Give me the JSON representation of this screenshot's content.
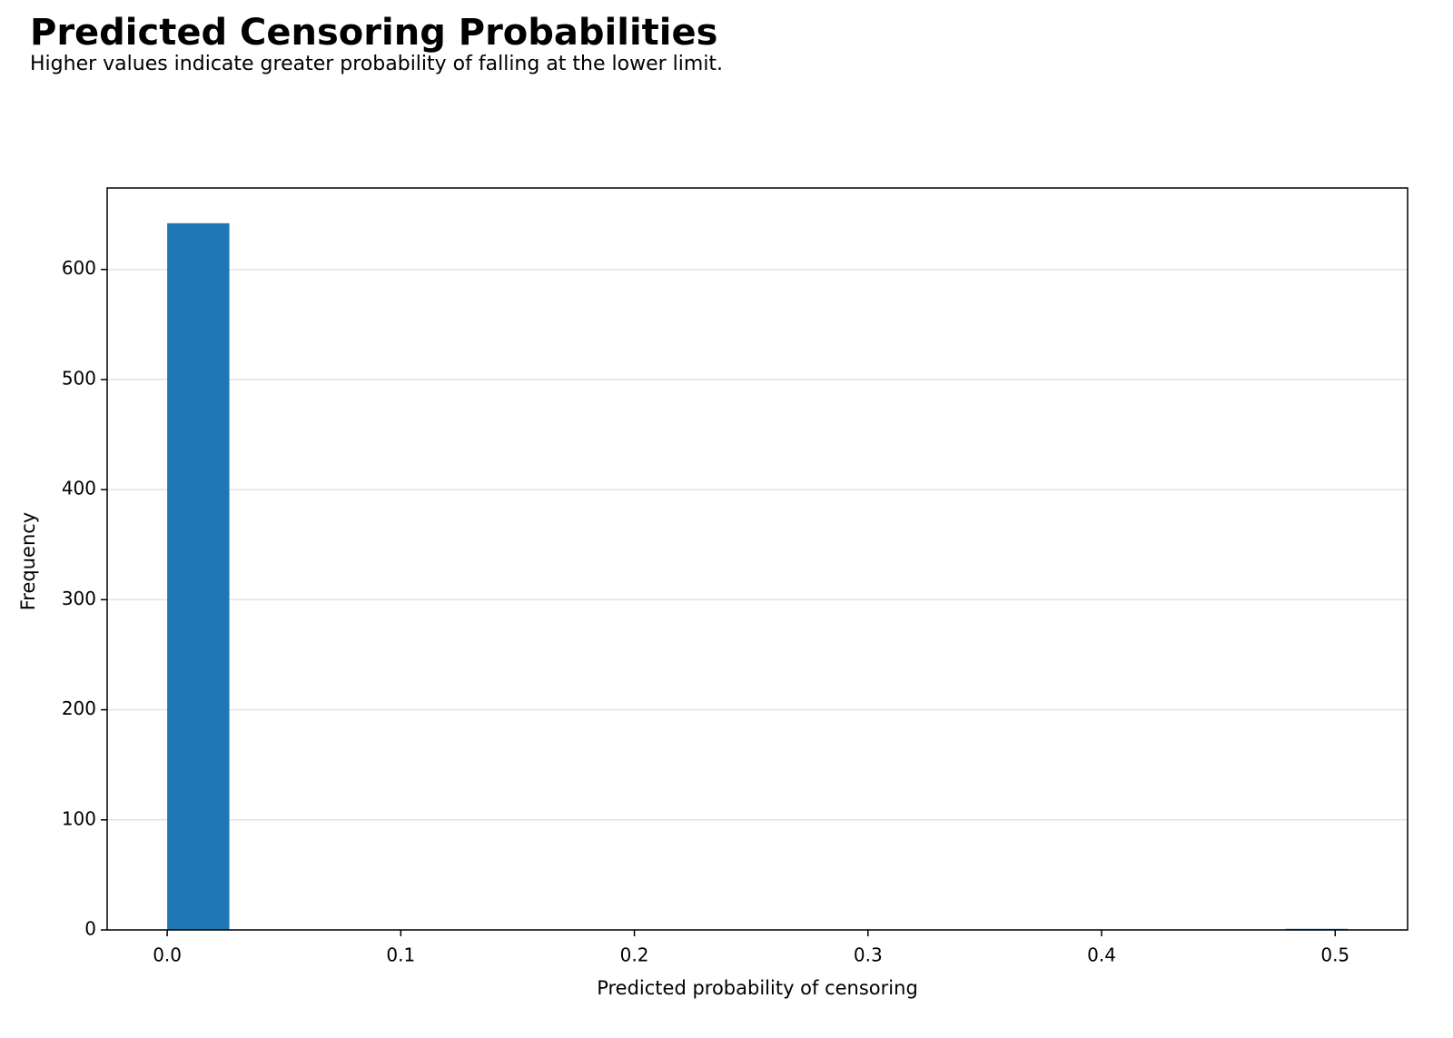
{
  "chart_data": {
    "type": "histogram",
    "title": "Predicted Censoring Probabilities",
    "subtitle": "Higher values indicate greater probability of falling at the lower limit.",
    "x_label": "Predicted probability of censoring",
    "y_label": "Frequency",
    "bins": [
      0,
      0.0266,
      0.0532,
      0.0798,
      0.1064,
      0.133,
      0.1596,
      0.1862,
      0.2128,
      0.2394,
      0.266,
      0.2926,
      0.3192,
      0.3458,
      0.3724,
      0.399,
      0.4256,
      0.4522,
      0.4788,
      0.5054
    ],
    "values": [
      642,
      0,
      0,
      0,
      0,
      0,
      0,
      0,
      0,
      0,
      0,
      0,
      0,
      0,
      0,
      0,
      0,
      0,
      1
    ],
    "color": "#1f77b4",
    "xlim": [
      -0.0257,
      0.531
    ],
    "xticks": [
      {
        "value": 0,
        "label": "0.0"
      },
      0.1,
      0.2,
      0.3,
      0.4,
      0.5
    ],
    "ylim": [
      0,
      674
    ],
    "yticks": [
      0,
      100,
      200,
      300,
      400,
      500,
      600
    ],
    "grid": true
  }
}
